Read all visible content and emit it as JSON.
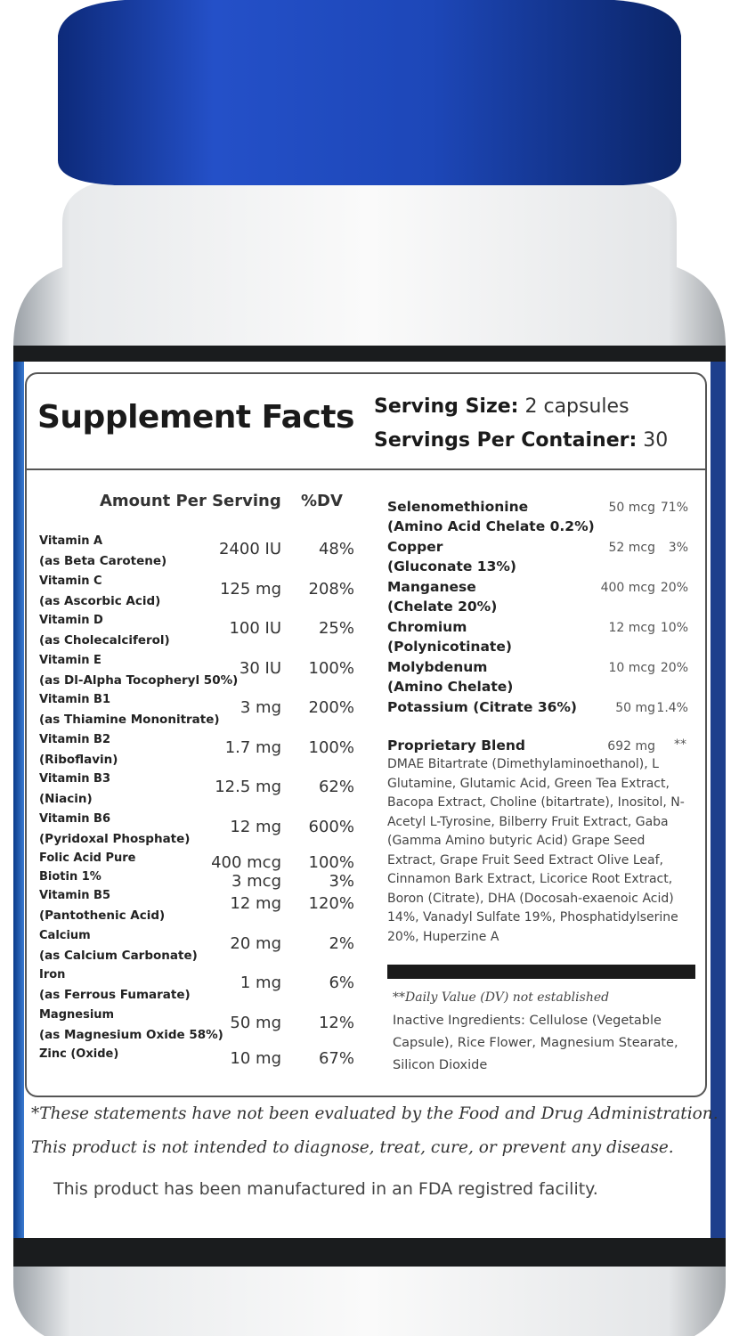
{
  "label": {
    "title": "Supplement Facts",
    "serving_size": {
      "label": "Serving Size:",
      "value": "2 capsules"
    },
    "servings_per_container": {
      "label": "Servings Per Container:",
      "value": "30"
    },
    "left_header": {
      "amount": "Amount Per Serving",
      "dv": "%DV"
    },
    "left_rows": [
      {
        "name": "Vitamin A",
        "detail": "(as Beta Carotene)",
        "amount": "2400 IU",
        "dv": "48%"
      },
      {
        "name": "Vitamin C",
        "detail": "(as Ascorbic Acid)",
        "amount": "125 mg",
        "dv": "208%"
      },
      {
        "name": "Vitamin D",
        "detail": "(as Cholecalciferol)",
        "amount": "100 IU",
        "dv": "25%"
      },
      {
        "name": "Vitamin E",
        "detail": "(as Dl-Alpha Tocopheryl 50%)",
        "amount": "30 IU",
        "dv": "100%"
      },
      {
        "name": "Vitamin B1",
        "detail": "(as Thiamine Mononitrate)",
        "amount": "3 mg",
        "dv": "200%"
      },
      {
        "name": "Vitamin B2",
        "detail": "(Riboflavin)",
        "amount": "1.7 mg",
        "dv": "100%"
      },
      {
        "name": "Vitamin B3",
        "detail": "(Niacin)",
        "amount": "12.5 mg",
        "dv": "62%"
      },
      {
        "name": "Vitamin B6",
        "detail": "(Pyridoxal Phosphate)",
        "amount": "12 mg",
        "dv": "600%"
      },
      {
        "name": "Folic Acid Pure",
        "amount": "400 mcg",
        "dv": "100%"
      },
      {
        "name": "Biotin 1%",
        "amount": "3 mcg",
        "dv": "3%"
      },
      {
        "name": "Vitamin B5",
        "detail": "(Pantothenic Acid)",
        "amount": "12 mg",
        "dv": "120%"
      },
      {
        "name": "Calcium",
        "detail": "(as Calcium Carbonate)",
        "amount": "20 mg",
        "dv": "2%"
      },
      {
        "name": "Iron",
        "detail": "(as Ferrous Fumarate)",
        "amount": "1 mg",
        "dv": "6%"
      },
      {
        "name": "Magnesium",
        "detail": "(as Magnesium Oxide 58%)",
        "amount": "50 mg",
        "dv": "12%"
      },
      {
        "name": "Zinc (Oxide)",
        "amount": "10 mg",
        "dv": "67%"
      }
    ],
    "right_rows": [
      {
        "name": "Selenomethionine",
        "detail": "(Amino Acid Chelate 0.2%)",
        "amount": "50 mcg",
        "dv": "71%"
      },
      {
        "name": "Copper",
        "detail": "(Gluconate 13%)",
        "amount": "52 mcg",
        "dv": "3%"
      },
      {
        "name": "Manganese",
        "detail": "(Chelate 20%)",
        "amount": "400 mcg",
        "dv": "20%"
      },
      {
        "name": "Chromium",
        "detail": "(Polynicotinate)",
        "amount": "12 mcg",
        "dv": "10%"
      },
      {
        "name": "Molybdenum",
        "detail": "(Amino Chelate)",
        "amount": "10 mcg",
        "dv": "20%"
      },
      {
        "name": "Potassium (Citrate 36%)",
        "amount": "50 mg",
        "dv": "1.4%"
      }
    ],
    "blend": {
      "name": "Proprietary Blend",
      "amount": "692 mg",
      "dv": "**",
      "ingredients": "DMAE Bitartrate (Dimethylaminoethanol), L Glutamine, Glutamic Acid, Green Tea Extract, Bacopa Extract, Choline (bitartrate), Inositol, N-Acetyl L-Tyrosine, Bilberry Fruit Extract, Gaba (Gamma Amino butyric Acid) Grape Seed Extract, Grape Fruit Seed Extract Olive Leaf, Cinnamon Bark Extract, Licorice Root Extract, Boron (Citrate), DHA (Docosah-exaenoic Acid) 14%, Vanadyl Sulfate 19%, Phosphatidylserine 20%, Huperzine A"
    },
    "dv_note": "**Daily Value (DV) not established",
    "inactive": "Inactive Ingredients: Cellulose (Vegetable Capsule), Rice Flower, Magnesium Stearate, Silicon Dioxide",
    "disclaimer": [
      "*These statements have not been evaluated by the Food and Drug Administration.",
      "This product is not intended to diagnose, treat, cure, or prevent any disease."
    ],
    "facility": "This product has been manufactured in an FDA registred facility."
  }
}
